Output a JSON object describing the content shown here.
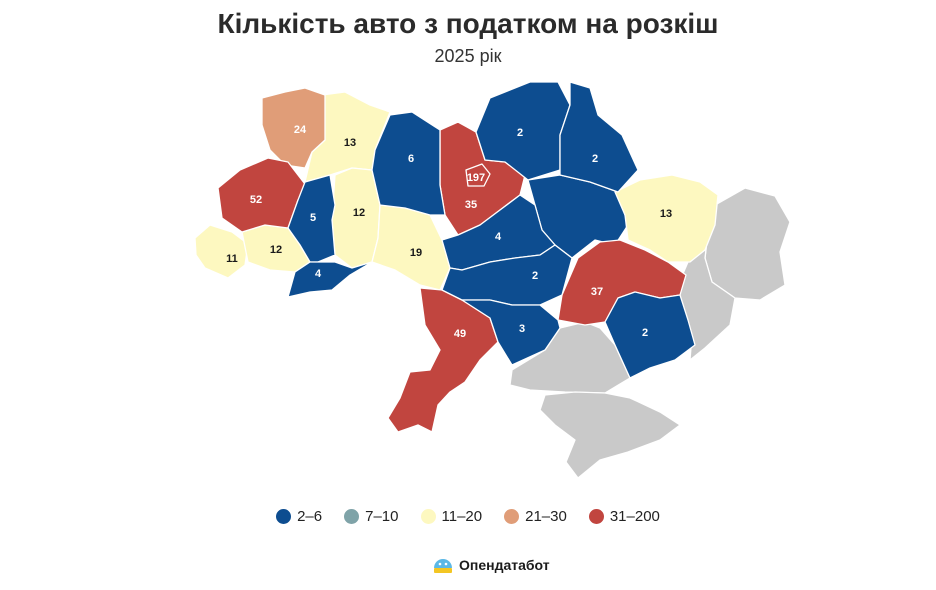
{
  "header": {
    "title": "Кількість авто з податком на розкіш",
    "subtitle": "2025 рік"
  },
  "colors": {
    "c1": "#0d4d90",
    "c2": "#7fa3a8",
    "c3": "#fdf8c0",
    "c4": "#e09d78",
    "c5": "#c1453f",
    "nodata": "#c9c9c9"
  },
  "legend": [
    {
      "label": "2–6",
      "color": "#0d4d90"
    },
    {
      "label": "7–10",
      "color": "#7fa3a8"
    },
    {
      "label": "11–20",
      "color": "#fdf8c0"
    },
    {
      "label": "21–30",
      "color": "#e09d78"
    },
    {
      "label": "31–200",
      "color": "#c1453f"
    }
  ],
  "regions": [
    {
      "id": "volyn",
      "value": "24"
    },
    {
      "id": "rivne",
      "value": "13"
    },
    {
      "id": "zhytomyr",
      "value": "6"
    },
    {
      "id": "kyiv-oblast",
      "value": "35"
    },
    {
      "id": "kyiv-city",
      "value": "197"
    },
    {
      "id": "chernihiv",
      "value": "2"
    },
    {
      "id": "sumy",
      "value": "2"
    },
    {
      "id": "kharkiv",
      "value": "13"
    },
    {
      "id": "lviv",
      "value": "52"
    },
    {
      "id": "ternopil",
      "value": "5"
    },
    {
      "id": "khmelnytskyi",
      "value": "12"
    },
    {
      "id": "vinnytsia",
      "value": "19"
    },
    {
      "id": "cherkasy",
      "value": "4"
    },
    {
      "id": "poltava",
      "value": "2"
    },
    {
      "id": "zakarpattia",
      "value": "11"
    },
    {
      "id": "ivano-frankivsk",
      "value": "12"
    },
    {
      "id": "chernivtsi",
      "value": "4"
    },
    {
      "id": "kirovohrad",
      "value": "2"
    },
    {
      "id": "dnipropetrovsk",
      "value": "37"
    },
    {
      "id": "odesa",
      "value": "49"
    },
    {
      "id": "mykolaiv",
      "value": "3"
    },
    {
      "id": "zaporizhzhia",
      "value": "2"
    },
    {
      "id": "kherson",
      "value": ""
    },
    {
      "id": "donetsk",
      "value": ""
    },
    {
      "id": "luhansk",
      "value": ""
    },
    {
      "id": "crimea",
      "value": ""
    }
  ],
  "brand": {
    "name": "Опендатабот"
  }
}
